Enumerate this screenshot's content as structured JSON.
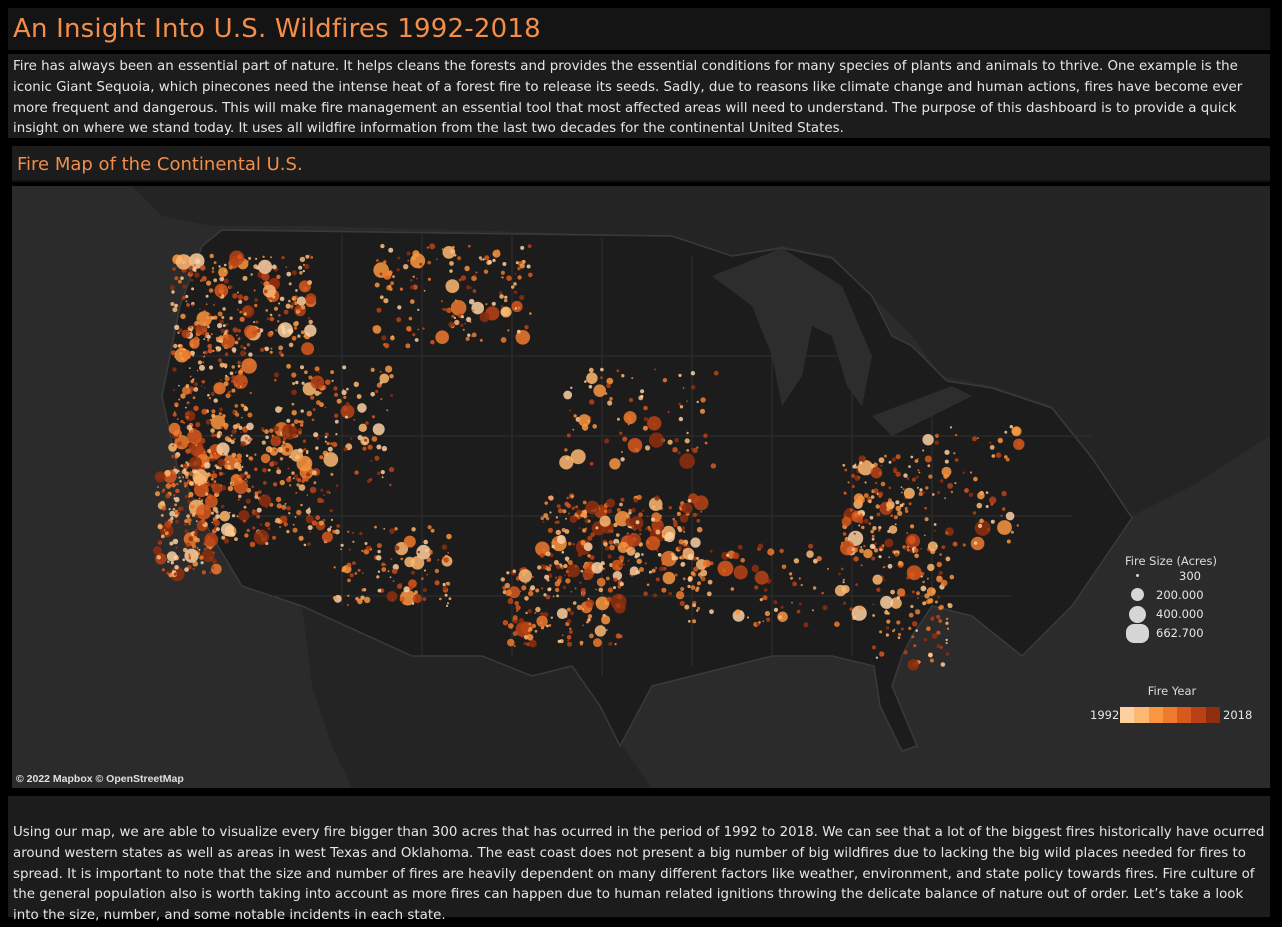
{
  "header": {
    "title": "An Insight Into U.S. Wildfires 1992-2018"
  },
  "intro": {
    "text": "Fire has always been an essential part of nature. It helps cleans the forests and provides the essential conditions for many species of plants and animals to thrive. One example is the iconic Giant Sequoia, which pinecones need the intense heat of a forest fire to release its seeds. Sadly, due to reasons like climate change and human actions, fires have become ever more frequent and dangerous. This will make fire management an essential tool that most affected areas will need to understand. The purpose of this dashboard is to provide a quick insight on where we stand today. It uses all wildfire information from the last two decades for the continental United States."
  },
  "map": {
    "title": "Fire Map of the Continental U.S.",
    "attribution": "© 2022 Mapbox  © OpenStreetMap",
    "size_legend": {
      "title": "Fire Size (Acres)",
      "items": [
        {
          "label": "300",
          "acres": 300
        },
        {
          "label": "200.000",
          "acres": 200000
        },
        {
          "label": "400.000",
          "acres": 400000
        },
        {
          "label": "662.700",
          "acres": 662700
        }
      ]
    },
    "year_legend": {
      "title": "Fire Year",
      "start": "1992",
      "end": "2018",
      "colors": [
        "#fdd0a2",
        "#fdb872",
        "#f9963f",
        "#ee7a2e",
        "#d9581c",
        "#b84215",
        "#8f2e0d"
      ]
    },
    "colors": {
      "land": "#1f1f1f",
      "water": "#2c2c2c",
      "borders": "#3a3a3a",
      "fire_high": "#f28e4a"
    }
  },
  "outro": {
    "text": "Using our map, we are able to visualize every fire bigger than 300 acres that has ocurred in the period of 1992 to 2018. We can see that a lot of the biggest fires historically have ocurred around western states as well as areas in west Texas and Oklahoma. The east coast does not present a big number of big wildfires due to lacking the big wild places needed for fires to spread. It is important to note that the size and number of fires are heavily dependent on many different factors like weather, environment, and state policy towards fires. Fire culture of the general population also is worth taking into account as more fires can happen due to human related ignitions throwing the delicate balance of nature out of order. Let’s take a look into the size, number, and some notable incidents in each state."
  }
}
